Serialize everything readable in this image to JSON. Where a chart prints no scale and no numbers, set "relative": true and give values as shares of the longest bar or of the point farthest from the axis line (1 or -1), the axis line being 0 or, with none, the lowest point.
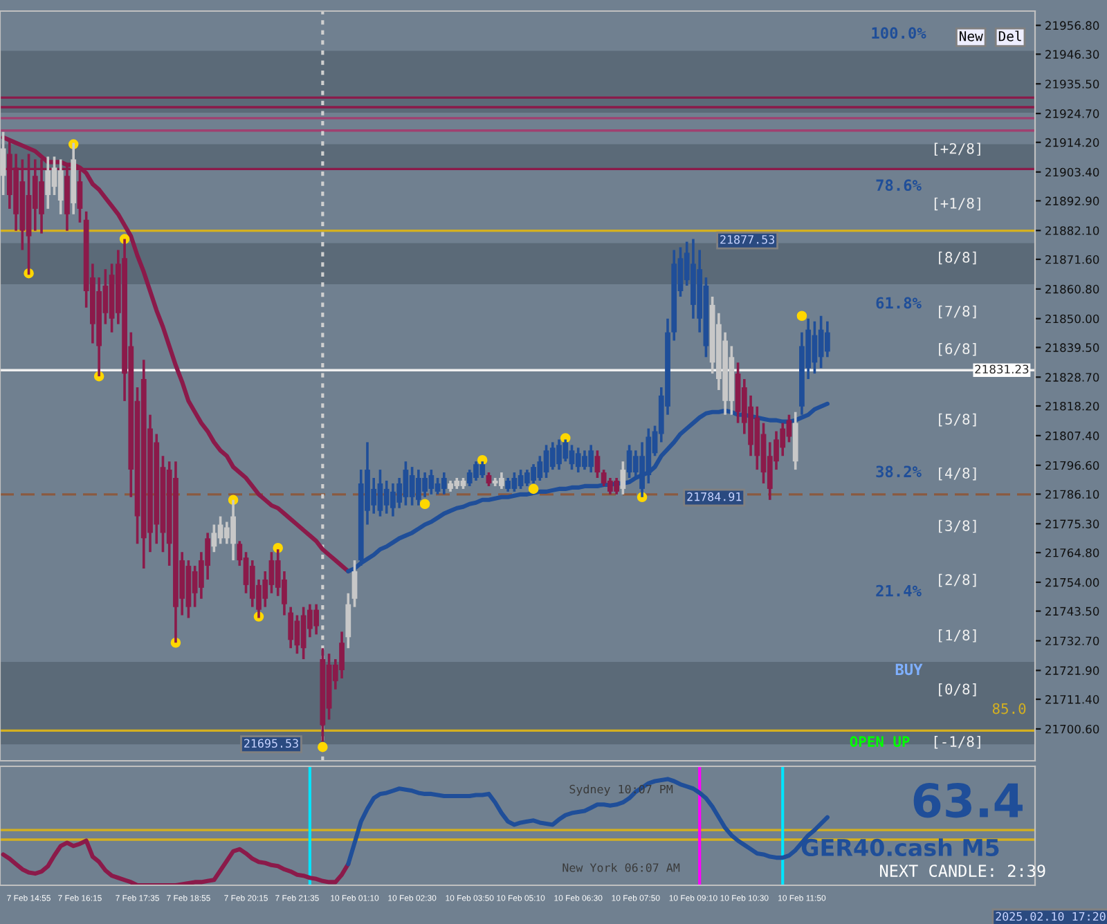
{
  "chart_data": [
    {
      "type": "candlestick",
      "tick_labels": "y",
      "grid": false,
      "legend": false,
      "categories": [
        null,
        null,
        null,
        null,
        null,
        null,
        null,
        null,
        null,
        null,
        null,
        null,
        null,
        null,
        null,
        null,
        null,
        null,
        null,
        null,
        null,
        null,
        null,
        null,
        null,
        null,
        null,
        null,
        null,
        null,
        null,
        null,
        null,
        null,
        null,
        null,
        null,
        null,
        null,
        null,
        null,
        null,
        null,
        null,
        null,
        null,
        null,
        null,
        null,
        null,
        null,
        null,
        null,
        null,
        null,
        null,
        null,
        null,
        null,
        null,
        null,
        null,
        null,
        null,
        null,
        null,
        null,
        null,
        null,
        null,
        null,
        null,
        null,
        null,
        null,
        null,
        null,
        null,
        null,
        null,
        null,
        null,
        null,
        null,
        null,
        null,
        null,
        null,
        null,
        null,
        null,
        null,
        null,
        null,
        null,
        null,
        null,
        null,
        null,
        null,
        null,
        null,
        null,
        null,
        null,
        null,
        null,
        null,
        null,
        null,
        null,
        null,
        null,
        null,
        null,
        null,
        null,
        null,
        null,
        null,
        null,
        null,
        null,
        null,
        null,
        null,
        null,
        null,
        null,
        null,
        null,
        null,
        null,
        null,
        null,
        null,
        null,
        null,
        null,
        null,
        null,
        null,
        null,
        null,
        null,
        null,
        null,
        null,
        null,
        null,
        null,
        null,
        null,
        null,
        null,
        null,
        null,
        null,
        null,
        null,
        null,
        null
      ],
      "ohlc": [
        [
          21902,
          21918,
          21895,
          21912
        ],
        [
          21910,
          21915,
          21890,
          21895
        ],
        [
          21905,
          21910,
          21882,
          21888
        ],
        [
          21900,
          21908,
          21875,
          21882
        ],
        [
          21895,
          21910,
          21866,
          21880
        ],
        [
          21902,
          21908,
          21882,
          21890
        ],
        [
          21900,
          21908,
          21881,
          21888
        ],
        [
          21895,
          21909,
          21890,
          21904
        ],
        [
          21898,
          21909,
          21895,
          21905
        ],
        [
          21893,
          21908,
          21888,
          21904
        ],
        [
          21902,
          21906,
          21882,
          21888
        ],
        [
          21892,
          21914,
          21888,
          21908
        ],
        [
          21900,
          21904,
          21885,
          21890
        ],
        [
          21886,
          21889,
          21854,
          21860
        ],
        [
          21865,
          21870,
          21841,
          21848
        ],
        [
          21860,
          21865,
          21829,
          21840
        ],
        [
          21862,
          21868,
          21848,
          21852
        ],
        [
          21866,
          21870,
          21845,
          21850
        ],
        [
          21870,
          21875,
          21848,
          21852
        ],
        [
          21872,
          21879,
          21820,
          21830
        ],
        [
          21840,
          21845,
          21785,
          21795
        ],
        [
          21820,
          21825,
          21768,
          21778
        ],
        [
          21828,
          21835,
          21759,
          21770
        ],
        [
          21810,
          21815,
          21765,
          21772
        ],
        [
          21805,
          21808,
          21768,
          21775
        ],
        [
          21796,
          21800,
          21765,
          21772
        ],
        [
          21795,
          21798,
          21760,
          21768
        ],
        [
          21792,
          21798,
          21732,
          21745
        ],
        [
          21762,
          21765,
          21742,
          21748
        ],
        [
          21760,
          21762,
          21741,
          21745
        ],
        [
          21758,
          21760,
          21745,
          21750
        ],
        [
          21762,
          21765,
          21748,
          21752
        ],
        [
          21770,
          21772,
          21755,
          21760
        ],
        [
          21767,
          21775,
          21765,
          21772
        ],
        [
          21770,
          21778,
          21768,
          21775
        ],
        [
          21770,
          21776,
          21768,
          21774
        ],
        [
          21768,
          21784,
          21762,
          21778
        ],
        [
          21768,
          21769,
          21760,
          21762
        ],
        [
          21763,
          21765,
          21750,
          21753
        ],
        [
          21760,
          21762,
          21745,
          21748
        ],
        [
          21753,
          21755,
          21741,
          21744
        ],
        [
          21755,
          21758,
          21745,
          21748
        ],
        [
          21762,
          21765,
          21750,
          21753
        ],
        [
          21762,
          21766,
          21749,
          21752
        ],
        [
          21755,
          21758,
          21742,
          21746
        ],
        [
          21743,
          21745,
          21730,
          21733
        ],
        [
          21740,
          21742,
          21728,
          21731
        ],
        [
          21742,
          21745,
          21726,
          21730
        ],
        [
          21744,
          21746,
          21734,
          21737
        ],
        [
          21744,
          21746,
          21735,
          21738
        ],
        [
          21726,
          21730,
          21696,
          21702
        ],
        [
          21724,
          21728,
          21704,
          21708
        ],
        [
          21724,
          21726,
          21715,
          21718
        ],
        [
          21732,
          21736,
          21719,
          21722
        ],
        [
          21734,
          21750,
          21730,
          21746
        ],
        [
          21748,
          21762,
          21745,
          21758
        ],
        [
          21762,
          21795,
          21760,
          21790
        ],
        [
          21780,
          21805,
          21775,
          21795
        ],
        [
          21782,
          21792,
          21779,
          21788
        ],
        [
          21780,
          21795,
          21778,
          21790
        ],
        [
          21782,
          21791,
          21779,
          21788
        ],
        [
          21781,
          21790,
          21778,
          21787
        ],
        [
          21783,
          21792,
          21781,
          21790
        ],
        [
          21785,
          21798,
          21782,
          21795
        ],
        [
          21785,
          21796,
          21782,
          21793
        ],
        [
          21784,
          21795,
          21782,
          21792
        ],
        [
          21787,
          21794,
          21785,
          21792
        ],
        [
          21788,
          21795,
          21786,
          21793
        ],
        [
          21787,
          21792,
          21786,
          21790
        ],
        [
          21788,
          21794,
          21786,
          21792
        ],
        [
          21788,
          21791,
          21787,
          21790
        ],
        [
          21789,
          21792,
          21788,
          21791
        ],
        [
          21789,
          21792,
          21788,
          21791
        ],
        [
          21790,
          21795,
          21789,
          21794
        ],
        [
          21792,
          21798,
          21791,
          21797
        ],
        [
          21793,
          21798,
          21792,
          21797
        ],
        [
          21793,
          21794,
          21789,
          21790
        ],
        [
          21790,
          21792,
          21789,
          21791
        ],
        [
          21789,
          21794,
          21788,
          21792
        ],
        [
          21788,
          21792,
          21787,
          21791
        ],
        [
          21788,
          21794,
          21787,
          21792
        ],
        [
          21789,
          21795,
          21788,
          21793
        ],
        [
          21790,
          21795,
          21789,
          21794
        ],
        [
          21791,
          21797,
          21790,
          21796
        ],
        [
          21792,
          21800,
          21791,
          21798
        ],
        [
          21794,
          21804,
          21792,
          21802
        ],
        [
          21796,
          21805,
          21795,
          21803
        ],
        [
          21797,
          21806,
          21795,
          21804
        ],
        [
          21799,
          21806,
          21798,
          21805
        ],
        [
          21797,
          21804,
          21795,
          21802
        ],
        [
          21796,
          21803,
          21794,
          21801
        ],
        [
          21796,
          21802,
          21795,
          21800
        ],
        [
          21796,
          21804,
          21794,
          21802
        ],
        [
          21800,
          21802,
          21792,
          21794
        ],
        [
          21794,
          21795,
          21789,
          21790
        ],
        [
          21791,
          21792,
          21786,
          21787
        ],
        [
          21791,
          21792,
          21786,
          21787
        ],
        [
          21788,
          21798,
          21786,
          21795
        ],
        [
          21794,
          21804,
          21792,
          21802
        ],
        [
          21794,
          21802,
          21792,
          21800
        ],
        [
          21788,
          21805,
          21785,
          21800
        ],
        [
          21793,
          21810,
          21790,
          21807
        ],
        [
          21801,
          21811,
          21800,
          21809
        ],
        [
          21808,
          21825,
          21805,
          21822
        ],
        [
          21818,
          21850,
          21815,
          21845
        ],
        [
          21845,
          21875,
          21842,
          21870
        ],
        [
          21860,
          21876,
          21858,
          21872
        ],
        [
          21864,
          21878,
          21862,
          21874
        ],
        [
          21855,
          21879,
          21850,
          21870
        ],
        [
          21850,
          21875,
          21845,
          21868
        ],
        [
          21840,
          21865,
          21836,
          21862
        ],
        [
          21834,
          21858,
          21830,
          21855
        ],
        [
          21828,
          21852,
          21824,
          21848
        ],
        [
          21820,
          21845,
          21815,
          21842
        ],
        [
          21820,
          21840,
          21815,
          21836
        ],
        [
          21830,
          21834,
          21812,
          21816
        ],
        [
          21825,
          21828,
          21808,
          21812
        ],
        [
          21818,
          21822,
          21800,
          21804
        ],
        [
          21814,
          21818,
          21795,
          21800
        ],
        [
          21808,
          21812,
          21790,
          21794
        ],
        [
          21800,
          21805,
          21784,
          21788
        ],
        [
          21806,
          21809,
          21795,
          21798
        ],
        [
          21810,
          21812,
          21800,
          21803
        ],
        [
          21813,
          21815,
          21805,
          21807
        ],
        [
          21798,
          21816,
          21795,
          21812
        ],
        [
          21818,
          21845,
          21815,
          21840
        ],
        [
          21832,
          21850,
          21828,
          21846
        ],
        [
          21834,
          21849,
          21830,
          21844
        ],
        [
          21836,
          21851,
          21832,
          21846
        ],
        [
          21838,
          21849,
          21836,
          21845
        ],
        null,
        null,
        null,
        null,
        null,
        null,
        null,
        null,
        null,
        null,
        null,
        null,
        null,
        null,
        null,
        null,
        null,
        null,
        null,
        null,
        null,
        null,
        null,
        null,
        null,
        null,
        null,
        null,
        null,
        null,
        null,
        null
      ],
      "colors": [
        "#c8c8c8",
        "#8b1a4a",
        "#8b1a4a",
        "#8b1a4a",
        "#8b1a4a",
        "#8b1a4a",
        "#8b1a4a",
        "#c8c8c8",
        "#c8c8c8",
        "#c8c8c8",
        "#8b1a4a",
        "#c8c8c8",
        "#8b1a4a",
        "#8b1a4a",
        "#8b1a4a",
        "#8b1a4a",
        "#8b1a4a",
        "#8b1a4a",
        "#8b1a4a",
        "#8b1a4a",
        "#8b1a4a",
        "#8b1a4a",
        "#8b1a4a",
        "#8b1a4a",
        "#8b1a4a",
        "#8b1a4a",
        "#8b1a4a",
        "#8b1a4a",
        "#8b1a4a",
        "#8b1a4a",
        "#8b1a4a",
        "#8b1a4a",
        "#8b1a4a",
        "#c8c8c8",
        "#c8c8c8",
        "#c8c8c8",
        "#c8c8c8",
        "#8b1a4a",
        "#8b1a4a",
        "#8b1a4a",
        "#8b1a4a",
        "#8b1a4a",
        "#8b1a4a",
        "#8b1a4a",
        "#8b1a4a",
        "#8b1a4a",
        "#8b1a4a",
        "#8b1a4a",
        "#8b1a4a",
        "#8b1a4a",
        "#8b1a4a",
        "#8b1a4a",
        "#8b1a4a",
        "#8b1a4a",
        "#c8c8c8",
        "#c8c8c8",
        "#1f4e99",
        "#1f4e99",
        "#1f4e99",
        "#1f4e99",
        "#1f4e99",
        "#1f4e99",
        "#1f4e99",
        "#1f4e99",
        "#1f4e99",
        "#1f4e99",
        "#1f4e99",
        "#1f4e99",
        "#1f4e99",
        "#1f4e99",
        "#c8c8c8",
        "#c8c8c8",
        "#c8c8c8",
        "#1f4e99",
        "#1f4e99",
        "#1f4e99",
        "#8b1a4a",
        "#c8c8c8",
        "#c8c8c8",
        "#1f4e99",
        "#1f4e99",
        "#1f4e99",
        "#1f4e99",
        "#1f4e99",
        "#1f4e99",
        "#1f4e99",
        "#1f4e99",
        "#1f4e99",
        "#1f4e99",
        "#1f4e99",
        "#1f4e99",
        "#1f4e99",
        "#1f4e99",
        "#8b1a4a",
        "#8b1a4a",
        "#8b1a4a",
        "#8b1a4a",
        "#c8c8c8",
        "#1f4e99",
        "#1f4e99",
        "#1f4e99",
        "#1f4e99",
        "#1f4e99",
        "#1f4e99",
        "#1f4e99",
        "#1f4e99",
        "#1f4e99",
        "#1f4e99",
        "#1f4e99",
        "#1f4e99",
        "#1f4e99",
        "#c8c8c8",
        "#c8c8c8",
        "#c8c8c8",
        "#c8c8c8",
        "#8b1a4a",
        "#8b1a4a",
        "#8b1a4a",
        "#8b1a4a",
        "#8b1a4a",
        "#8b1a4a",
        "#8b1a4a",
        "#8b1a4a",
        "#8b1a4a",
        "#c8c8c8",
        "#1f4e99",
        "#1f4e99",
        "#1f4e99",
        "#1f4e99",
        "#1f4e99",
        null,
        null,
        null,
        null,
        null,
        null,
        null,
        null,
        null,
        null,
        null,
        null,
        null,
        null,
        null,
        null,
        null,
        null,
        null,
        null,
        null,
        null,
        null,
        null,
        null,
        null,
        null,
        null,
        null,
        null,
        null,
        null
      ],
      "series": [
        {
          "type": "line",
          "color": "#8b1a4a",
          "values": [
            21916,
            21915,
            21914,
            21913,
            21912,
            21911,
            21909,
            21907,
            21907,
            21907,
            21906,
            21906,
            21905,
            21903,
            21899,
            21897,
            21894,
            21891,
            21888,
            21884,
            21880,
            21873,
            21867,
            21860,
            21853,
            21847,
            21840,
            21833,
            21827,
            21820,
            21816,
            21812,
            21809,
            21805,
            21802,
            21800,
            21796,
            21794,
            21792,
            21789,
            21786,
            21784,
            21782,
            21781,
            21779,
            21777,
            21775,
            21773,
            21771,
            21769,
            21766,
            21764,
            21762,
            21760,
            21758,
            null,
            null,
            null,
            null,
            null,
            null,
            null,
            null,
            null,
            null,
            null,
            null,
            null,
            null,
            null,
            null,
            null,
            null,
            null,
            null,
            null,
            null,
            null,
            null,
            null,
            null,
            null,
            null,
            null,
            null,
            null,
            null,
            null,
            null,
            null,
            null,
            null,
            null,
            null,
            null,
            null,
            null,
            null,
            null,
            null,
            null,
            null,
            null,
            null,
            null,
            null,
            null,
            null,
            null,
            null,
            null,
            null,
            null,
            null,
            null,
            null,
            null,
            null,
            null,
            null,
            null,
            null,
            null,
            null,
            null,
            null,
            null,
            null,
            null,
            null,
            null,
            null,
            null,
            null,
            null,
            null,
            null,
            null,
            null,
            null,
            null,
            null,
            null,
            null,
            null,
            null,
            null,
            null,
            null,
            null,
            null,
            null,
            null,
            null,
            null,
            null,
            null,
            null,
            null,
            null,
            null,
            null
          ]
        },
        {
          "type": "line",
          "color": "#1f4e99",
          "values": [
            null,
            null,
            null,
            null,
            null,
            null,
            null,
            null,
            null,
            null,
            null,
            null,
            null,
            null,
            null,
            null,
            null,
            null,
            null,
            null,
            null,
            null,
            null,
            null,
            null,
            null,
            null,
            null,
            null,
            null,
            null,
            null,
            null,
            null,
            null,
            null,
            null,
            null,
            null,
            null,
            null,
            null,
            null,
            null,
            null,
            null,
            null,
            null,
            null,
            null,
            null,
            null,
            null,
            null,
            21758,
            21759,
            21761,
            21762.5,
            21764,
            21766,
            21767,
            21768.5,
            21770,
            21771,
            21772,
            21773.5,
            21775,
            21776,
            21777.5,
            21779,
            21780,
            21781,
            21781.5,
            21782.5,
            21783,
            21784,
            21784,
            21784.5,
            21785,
            21785,
            21785.5,
            21786,
            21786,
            21786.5,
            21787,
            21787,
            21787.5,
            21788,
            21788,
            21788.5,
            21788.5,
            21789,
            21789,
            21789,
            21789.5,
            21789.5,
            21790,
            21790,
            21790.5,
            21792,
            21793,
            21794,
            21796,
            21800,
            21802.5,
            21805,
            21808,
            21810,
            21812,
            21814,
            21815.5,
            21816,
            21816,
            21816.5,
            21816,
            21815,
            21815,
            21814.5,
            21814,
            21813.5,
            21813,
            21813,
            21812.5,
            21812.5,
            21813,
            21814,
            21815,
            21817,
            21818,
            21819,
            null,
            null,
            null,
            null,
            null,
            null,
            null,
            null,
            null,
            null,
            null,
            null,
            null,
            null,
            null,
            null,
            null,
            null,
            null,
            null,
            null,
            null,
            null,
            null,
            null,
            null,
            null,
            null,
            null,
            null,
            null,
            null
          ]
        },
        {
          "type": "scatter",
          "color": "#ffd700",
          "marker": "circle",
          "values": [
            null,
            null,
            null,
            null,
            21866.5,
            null,
            null,
            null,
            null,
            null,
            null,
            21913.5,
            null,
            null,
            null,
            21829,
            null,
            null,
            null,
            21879,
            null,
            null,
            null,
            null,
            null,
            null,
            null,
            21732,
            null,
            null,
            null,
            null,
            null,
            null,
            null,
            null,
            21784,
            null,
            null,
            null,
            21741.5,
            null,
            null,
            21766.5,
            null,
            null,
            null,
            null,
            null,
            null,
            21694,
            null,
            null,
            null,
            null,
            null,
            null,
            null,
            null,
            null,
            null,
            null,
            null,
            null,
            null,
            null,
            21782.5,
            null,
            null,
            null,
            null,
            null,
            null,
            null,
            null,
            21798.5,
            null,
            null,
            null,
            null,
            null,
            null,
            null,
            21788,
            null,
            null,
            null,
            null,
            21806.5,
            null,
            null,
            null,
            null,
            null,
            null,
            null,
            null,
            null,
            null,
            null,
            21785,
            null,
            null,
            null,
            null,
            null,
            null,
            null,
            null,
            null,
            null,
            null,
            null,
            null,
            null,
            null,
            null,
            null,
            null,
            null,
            null,
            null,
            null,
            null,
            null,
            21851,
            null,
            null,
            null,
            null,
            null,
            null,
            null,
            null,
            null,
            null,
            null,
            null,
            null,
            null,
            null,
            null,
            null,
            null,
            null,
            null,
            null,
            null,
            null,
            null,
            null,
            null,
            null,
            null,
            null,
            null,
            null,
            null,
            null,
            null,
            null,
            null
          ]
        }
      ],
      "ylim": [
        21689,
        21962
      ],
      "yticks": [
        {
          "value": 21956.8,
          "label": "21956.80"
        },
        {
          "value": 21946.3,
          "label": "21946.30"
        },
        {
          "value": 21935.5,
          "label": "21935.50"
        },
        {
          "value": 21924.7,
          "label": "21924.70"
        },
        {
          "value": 21914.2,
          "label": "21914.20"
        },
        {
          "value": 21903.4,
          "label": "21903.40"
        },
        {
          "value": 21892.9,
          "label": "21892.90"
        },
        {
          "value": 21882.1,
          "label": "21882.10"
        },
        {
          "value": 21871.6,
          "label": "21871.60"
        },
        {
          "value": 21860.8,
          "label": "21860.80"
        },
        {
          "value": 21850.0,
          "label": "21850.00"
        },
        {
          "value": 21839.5,
          "label": "21839.50"
        },
        {
          "value": 21828.7,
          "label": "21828.70"
        },
        {
          "value": 21818.2,
          "label": "21818.20"
        },
        {
          "value": 21807.4,
          "label": "21807.40"
        },
        {
          "value": 21796.6,
          "label": "21796.60"
        },
        {
          "value": 21786.1,
          "label": "21786.10"
        },
        {
          "value": 21775.3,
          "label": "21775.30"
        },
        {
          "value": 21764.8,
          "label": "21764.80"
        },
        {
          "value": 21754.0,
          "label": "21754.00"
        },
        {
          "value": 21743.5,
          "label": "21743.50"
        },
        {
          "value": 21732.7,
          "label": "21732.70"
        },
        {
          "value": 21721.9,
          "label": "21721.90"
        },
        {
          "value": 21711.4,
          "label": "21711.40"
        },
        {
          "value": 21700.6,
          "label": "21700.60"
        }
      ],
      "bands": [
        {
          "axis": "y",
          "from": 21925,
          "to": 21947.5,
          "color": "#5b6a78"
        },
        {
          "axis": "y",
          "from": 21904.5,
          "to": 21913.5,
          "color": "#5b6a78"
        },
        {
          "axis": "y",
          "from": 21862.5,
          "to": 21877.5,
          "color": "#5b6a78"
        },
        {
          "axis": "y",
          "from": 21695,
          "to": 21725,
          "color": "#5b6a78"
        }
      ],
      "ref_lines": [
        {
          "axis": "y",
          "value": 21831.23,
          "label": "21831.23",
          "color": "#f0f0f0"
        },
        {
          "axis": "y",
          "value": 21786,
          "color": "#8a5a40",
          "line_style": "dashed"
        },
        {
          "axis": "y",
          "value": 21930.5,
          "color": "#8b1a4a"
        },
        {
          "axis": "y",
          "value": 21927,
          "color": "#8b1a4a"
        },
        {
          "axis": "y",
          "value": 21923,
          "color": "#a04070"
        },
        {
          "axis": "y",
          "value": 21918.5,
          "color": "#a04070"
        },
        {
          "axis": "y",
          "value": 21904.5,
          "color": "#8b1a4a"
        },
        {
          "axis": "y",
          "value": 21882,
          "color": "#d4b020"
        },
        {
          "axis": "y",
          "value": 21700,
          "color": "#d4b020"
        }
      ],
      "annotations": [
        "100.0%",
        "78.6%",
        "61.8%",
        "38.2%",
        "21.4%",
        "[+2/8]",
        "[+1/8]",
        "[8/8]",
        "[7/8]",
        "[6/8]",
        "[5/8]",
        "[4/8]",
        "[3/8]",
        "[2/8]",
        "[1/8]",
        "[0/8]",
        "[-1/8]",
        "BUY",
        "OPEN UP",
        "85.0",
        "21877.53",
        "21784.91",
        "21695.53",
        "New",
        "Del"
      ]
    },
    {
      "type": "line",
      "relative": true,
      "tick_labels": "x",
      "grid": false,
      "legend": false,
      "categories": [
        null,
        null,
        null,
        null,
        "7 Feb 14:55",
        null,
        null,
        null,
        null,
        null,
        null,
        null,
        "7 Feb 16:15",
        null,
        null,
        null,
        null,
        null,
        null,
        null,
        null,
        "7 Feb 17:35",
        null,
        null,
        null,
        null,
        null,
        null,
        null,
        "7 Feb 18:55",
        null,
        null,
        null,
        null,
        null,
        null,
        null,
        null,
        "7 Feb 20:15",
        null,
        null,
        null,
        null,
        null,
        null,
        null,
        "7 Feb 21:35",
        null,
        null,
        null,
        null,
        null,
        null,
        null,
        null,
        "10 Feb 01:10",
        null,
        null,
        null,
        null,
        null,
        null,
        null,
        null,
        "10 Feb 02:30",
        null,
        null,
        null,
        null,
        null,
        null,
        null,
        null,
        "10 Feb 03:50",
        null,
        null,
        null,
        null,
        null,
        null,
        null,
        "10 Feb 05:10",
        null,
        null,
        null,
        null,
        null,
        null,
        null,
        null,
        "10 Feb 06:30",
        null,
        null,
        null,
        null,
        null,
        null,
        null,
        null,
        "10 Feb 07:50",
        null,
        null,
        null,
        null,
        null,
        null,
        null,
        null,
        "10 Feb 09:10",
        null,
        null,
        null,
        null,
        null,
        null,
        null,
        "10 Feb 10:30",
        null,
        null,
        null,
        null,
        null,
        null,
        null,
        null,
        "10 Feb 11:50",
        null,
        null,
        null,
        null,
        null,
        null,
        null,
        null,
        null,
        null,
        null,
        null,
        null,
        null,
        null,
        null,
        null,
        null,
        null,
        null,
        null,
        null,
        null,
        null,
        null,
        null,
        null,
        null,
        null,
        null,
        null,
        null,
        null,
        null,
        null,
        null
      ],
      "series": [
        {
          "color": "#8b1a4a",
          "values": [
            0.29,
            0.25,
            0.2,
            0.15,
            0.12,
            0.11,
            0.13,
            0.18,
            0.28,
            0.37,
            0.4,
            0.37,
            0.39,
            0.42,
            0.27,
            0.22,
            0.14,
            0.09,
            0.07,
            0.05,
            0.03,
            0,
            0,
            0,
            0,
            0,
            0,
            0,
            0.01,
            0.02,
            0.03,
            0.03,
            0.04,
            0.05,
            0.14,
            0.23,
            0.32,
            0.34,
            0.3,
            0.25,
            0.22,
            0.21,
            0.19,
            0.18,
            0.15,
            0.13,
            0.1,
            0.09,
            0.07,
            0.06,
            0.04,
            0.03,
            0.03,
            0.1,
            0.2,
            null,
            null,
            null,
            null,
            null,
            null,
            null,
            null,
            null,
            null,
            null,
            null,
            null,
            null,
            null,
            null,
            null,
            null,
            null,
            null,
            null,
            null,
            null,
            null,
            null,
            null,
            null,
            null,
            null,
            null,
            null,
            null,
            null,
            null,
            null,
            null,
            null,
            null,
            null,
            null,
            null,
            null,
            null,
            null,
            null,
            null,
            null,
            null,
            null,
            null,
            null,
            null,
            null,
            null,
            null,
            null,
            null,
            null,
            null,
            null,
            null,
            null,
            null,
            null,
            null,
            null,
            null,
            null,
            null,
            null,
            null,
            null,
            null,
            null,
            null,
            null,
            null,
            null,
            null,
            null,
            null,
            null,
            null,
            null,
            null,
            null,
            null,
            null,
            null,
            null,
            null,
            null,
            null,
            null,
            null,
            null,
            null,
            null,
            null,
            null,
            null,
            null,
            null,
            null,
            null,
            null,
            null
          ]
        },
        {
          "color": "#1f4e99",
          "values": [
            null,
            null,
            null,
            null,
            null,
            null,
            null,
            null,
            null,
            null,
            null,
            null,
            null,
            null,
            null,
            null,
            null,
            null,
            null,
            null,
            null,
            null,
            null,
            null,
            null,
            null,
            null,
            null,
            null,
            null,
            null,
            null,
            null,
            null,
            null,
            null,
            null,
            null,
            null,
            null,
            null,
            null,
            null,
            null,
            null,
            null,
            null,
            null,
            null,
            null,
            null,
            null,
            null,
            null,
            0.2,
            0.4,
            0.6,
            0.72,
            0.82,
            0.86,
            0.87,
            0.89,
            0.91,
            0.9,
            0.89,
            0.87,
            0.86,
            0.86,
            0.85,
            0.84,
            0.84,
            0.84,
            0.84,
            0.84,
            0.85,
            0.85,
            0.86,
            0.78,
            0.68,
            0.6,
            0.57,
            0.59,
            0.6,
            0.61,
            0.59,
            0.58,
            0.57,
            0.62,
            0.66,
            0.68,
            0.69,
            0.7,
            0.73,
            0.76,
            0.76,
            0.75,
            0.76,
            0.78,
            0.82,
            0.88,
            0.92,
            0.96,
            0.98,
            0.99,
            1,
            0.98,
            0.95,
            0.93,
            0.91,
            0.87,
            0.82,
            0.74,
            0.64,
            0.54,
            0.47,
            0.42,
            0.38,
            0.34,
            0.3,
            0.29,
            0.27,
            0.26,
            0.26,
            0.28,
            0.33,
            0.4,
            0.47,
            0.52,
            0.58,
            0.64,
            null,
            null,
            null,
            null,
            null,
            null,
            null,
            null,
            null,
            null,
            null,
            null,
            null,
            null,
            null,
            null,
            null,
            null,
            null,
            null,
            null,
            null,
            null,
            null,
            null,
            null,
            null,
            null,
            null,
            null,
            null,
            null
          ]
        }
      ],
      "ref_lines": [
        {
          "axis": "y",
          "value": 0.52,
          "color": "#d4b020"
        },
        {
          "axis": "y",
          "value": 0.43,
          "color": "#d4b020"
        }
      ],
      "annotations": [
        "63.4",
        "GER40.cash M5",
        "Sydney 10:07 PM",
        "New York 06:07 AM",
        "NEXT CANDLE: 2:39",
        "2025.02.10 17:20"
      ]
    }
  ]
}
